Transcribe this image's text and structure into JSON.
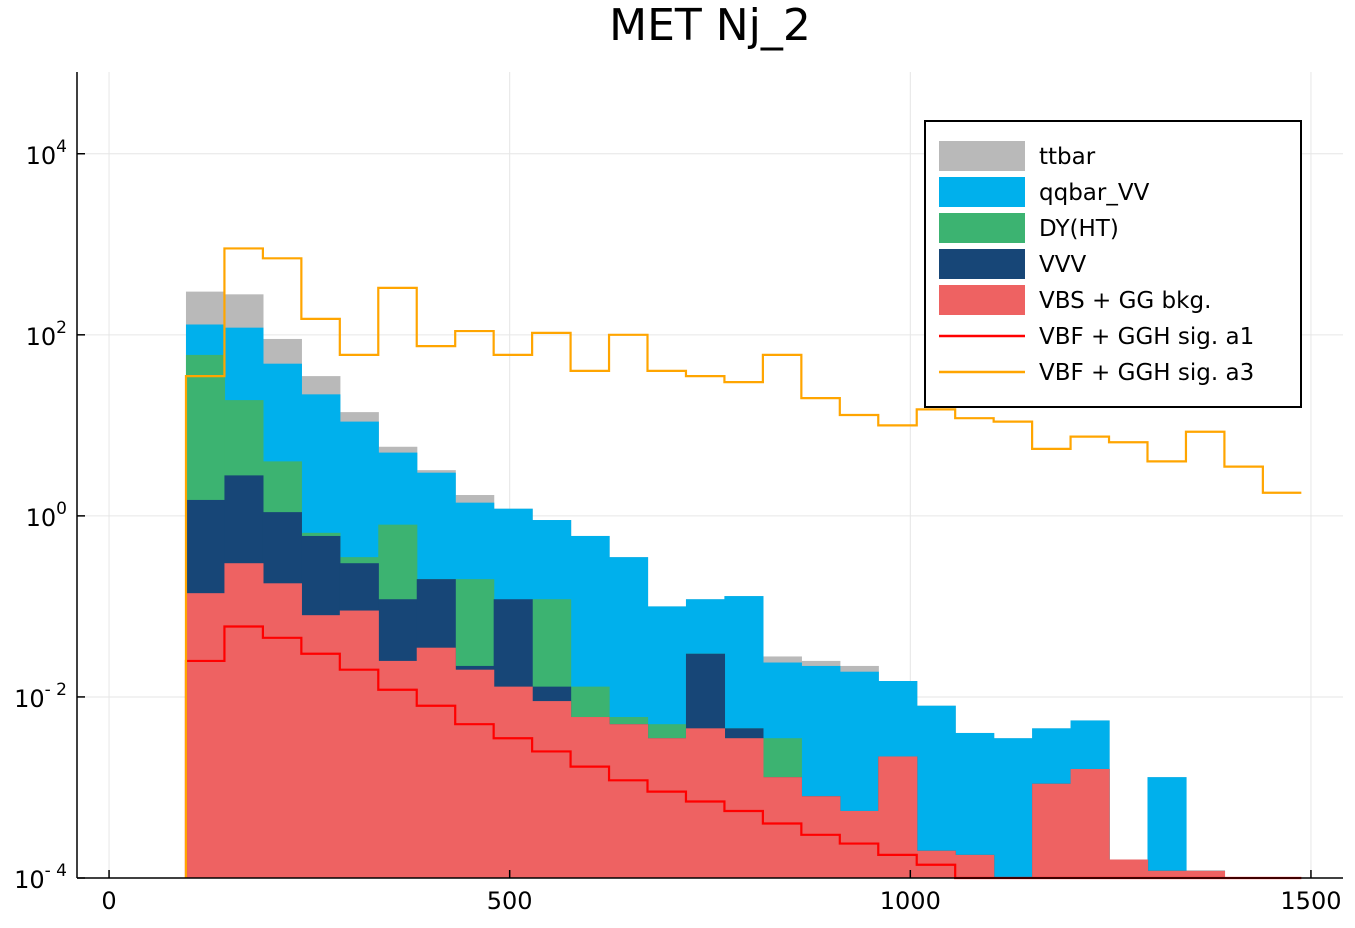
{
  "chart_data": {
    "type": "histogram",
    "title": "MET Nj_2",
    "xlabel": "",
    "ylabel": "",
    "yscale": "log10",
    "xlim": [
      -40,
      1540
    ],
    "ylim": [
      0.0001,
      80000
    ],
    "grid": true,
    "legend_position": "top-right",
    "x_ticks": [
      0,
      500,
      1000,
      1500
    ],
    "x_tick_labels": [
      "0",
      "500",
      "1000",
      "1500"
    ],
    "y_ticks": [
      0.0001,
      0.01,
      1,
      100,
      10000
    ],
    "y_tick_labels": [
      {
        "base": "10",
        "exp": "- 4"
      },
      {
        "base": "10",
        "exp": "- 2"
      },
      {
        "base": "10",
        "exp": "0"
      },
      {
        "base": "10",
        "exp": "2"
      },
      {
        "base": "10",
        "exp": "4"
      }
    ],
    "bin_edges": [
      96,
      144,
      192,
      240,
      288,
      336,
      384,
      432,
      480,
      528,
      576,
      624,
      672,
      720,
      768,
      816,
      864,
      912,
      960,
      1008,
      1056,
      1104,
      1152,
      1200,
      1248,
      1296,
      1344,
      1392,
      1440,
      1488
    ],
    "stacked_totals": [
      {
        "name": "ttbar",
        "color": "#b9b9b9",
        "values": [
          300,
          280,
          90,
          35,
          14,
          5.8,
          3.2,
          1.7,
          1.2,
          0.9,
          0.6,
          0.35,
          0.1,
          0.12,
          0.13,
          0.028,
          0.025,
          0.022,
          0.015,
          0.008,
          0.004,
          0.0035,
          0.0045,
          0.0055,
          0.00012,
          0.0013,
          0.00012,
          0,
          0,
          0
        ]
      },
      {
        "name": "qqbar_VV",
        "color": "#00b0ec",
        "values": [
          130,
          120,
          48,
          22,
          11,
          5,
          3,
          1.4,
          1.2,
          0.9,
          0.6,
          0.35,
          0.1,
          0.12,
          0.13,
          0.024,
          0.022,
          0.019,
          0.015,
          0.008,
          0.004,
          0.0035,
          0.0045,
          0.0055,
          0.00012,
          0.0013,
          0.00012,
          0,
          0,
          0
        ]
      },
      {
        "name": "DY(HT)",
        "color": "#3cb371",
        "values": [
          60,
          19,
          4,
          0.65,
          0.35,
          0.8,
          0.2,
          0.2,
          0.022,
          0.12,
          0.013,
          0.006,
          0.005,
          0.03,
          0.0045,
          0.0035,
          0.0008,
          0.00055,
          0.0022,
          0.0002,
          0.00018,
          0.0001,
          0.0011,
          0.0016,
          0.00016,
          0.00012,
          0.00012,
          0,
          0,
          0
        ]
      },
      {
        "name": "VVV",
        "color": "#174677",
        "values": [
          1.5,
          2.8,
          1.1,
          0.6,
          0.3,
          0.12,
          0.2,
          0.022,
          0.12,
          0.013,
          0.006,
          0.005,
          0.0035,
          0.03,
          0.0045,
          0.0013,
          0.0008,
          0.00055,
          0.0022,
          0.0002,
          0.00018,
          0.0001,
          0.0011,
          0.0016,
          0.00016,
          0.00012,
          0.00012,
          0,
          0,
          0
        ]
      },
      {
        "name": "VBS + GG bkg.",
        "color": "#ee6262",
        "values": [
          0.14,
          0.3,
          0.18,
          0.08,
          0.09,
          0.025,
          0.035,
          0.02,
          0.013,
          0.009,
          0.006,
          0.005,
          0.0035,
          0.0045,
          0.0035,
          0.0013,
          0.0008,
          0.00055,
          0.0022,
          0.0002,
          0.00018,
          0.0001,
          0.0011,
          0.0016,
          0.00016,
          0.00012,
          0.00012,
          0,
          0,
          0
        ]
      }
    ],
    "lines": [
      {
        "name": "VBF + GGH sig. a1",
        "color": "#ff0000",
        "values": [
          0.025,
          0.06,
          0.045,
          0.03,
          0.02,
          0.012,
          0.008,
          0.005,
          0.0035,
          0.0025,
          0.0017,
          0.0012,
          0.0009,
          0.0007,
          0.00055,
          0.0004,
          0.0003,
          0.00024,
          0.00018,
          0.00014,
          0.0001,
          8e-05,
          5e-05,
          0,
          0,
          0,
          0,
          0,
          0,
          0
        ]
      },
      {
        "name": "VBF + GGH sig. a3",
        "color": "#ffa500",
        "values": [
          35,
          900,
          700,
          150,
          60,
          330,
          75,
          110,
          60,
          105,
          40,
          100,
          40,
          35,
          30,
          60,
          20,
          13,
          10,
          15,
          12,
          11,
          5.5,
          7.5,
          6.5,
          4,
          8.5,
          3.5,
          1.8,
          0
        ]
      }
    ],
    "legend": [
      {
        "label": "ttbar",
        "color": "#b9b9b9",
        "kind": "patch"
      },
      {
        "label": "qqbar_VV",
        "color": "#00b0ec",
        "kind": "patch"
      },
      {
        "label": "DY(HT)",
        "color": "#3cb371",
        "kind": "patch"
      },
      {
        "label": "VVV",
        "color": "#174677",
        "kind": "patch"
      },
      {
        "label": "VBS + GG bkg.",
        "color": "#ee6262",
        "kind": "patch"
      },
      {
        "label": "VBF + GGH sig. a1",
        "color": "#ff0000",
        "kind": "line"
      },
      {
        "label": "VBF + GGH sig. a3",
        "color": "#ffa500",
        "kind": "line"
      }
    ]
  }
}
